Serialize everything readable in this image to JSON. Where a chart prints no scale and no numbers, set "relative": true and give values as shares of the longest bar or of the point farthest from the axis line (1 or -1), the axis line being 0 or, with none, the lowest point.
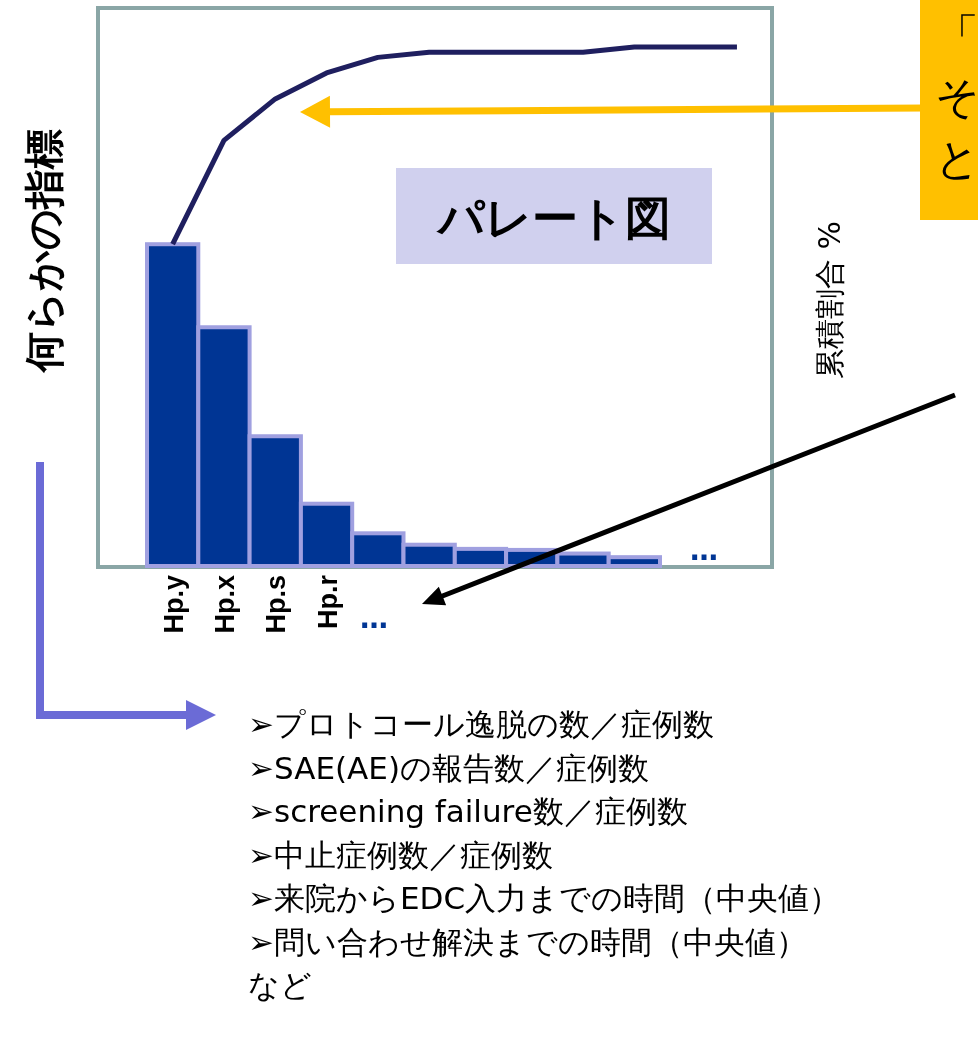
{
  "chart_data": {
    "type": "bar",
    "relative": true,
    "ylabel": "何らかの指標",
    "y2label": "累積割合 %",
    "categories": [
      "Hp.y",
      "Hp.x",
      "Hp.s",
      "Hp.r",
      null,
      null,
      null,
      null,
      null,
      null,
      null,
      null
    ],
    "series": [
      {
        "color": "#003594",
        "values": [
          0.62,
          0.46,
          0.25,
          0.12,
          0.063,
          0.041,
          0.033,
          0.031,
          0.024,
          0.017,
          null,
          null
        ]
      },
      {
        "type": "line",
        "color": "#1f1f5f",
        "values": [
          0.62,
          0.82,
          0.9,
          0.95,
          0.98,
          0.99,
          0.99,
          0.99,
          0.99,
          1.0,
          1.0,
          1.0
        ]
      }
    ],
    "annotations": [
      "パレート図",
      "…",
      "…",
      "「そと",
      "➢プロトコール逸脱の数／症例数",
      "➢SAE(AE)の報告数／症例数",
      "➢screening failure数／症例数",
      "➢中止症例数／症例数",
      "➢来院からEDC入力までの時間（中央値）",
      "➢問い合わせ解決までの時間（中央値）",
      "など"
    ]
  }
}
